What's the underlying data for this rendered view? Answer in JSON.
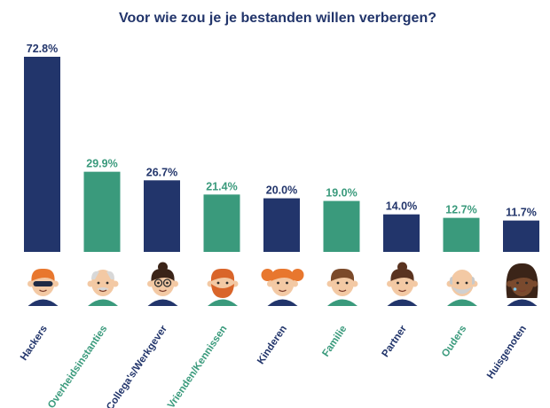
{
  "chart_data": {
    "type": "bar",
    "title": "Voor wie zou je je bestanden willen verbergen?",
    "xlabel": "",
    "ylabel": "",
    "ylim": [
      0,
      75
    ],
    "grid": false,
    "legend": "none",
    "value_suffix": "%",
    "categories": [
      "Hackers",
      "Overheidsinstanties",
      "Collega's/Werkgever",
      "Vrienden/Kennissen",
      "Kinderen",
      "Familie",
      "Partner",
      "Ouders",
      "Huisgenoten"
    ],
    "values": [
      72.8,
      29.9,
      26.7,
      21.4,
      20.0,
      19.0,
      14.0,
      12.7,
      11.7
    ],
    "value_labels": [
      "72.8%",
      "29.9%",
      "26.7%",
      "21.4%",
      "20.0%",
      "19.0%",
      "14.0%",
      "12.7%",
      "11.7%"
    ],
    "bar_colors": [
      "#22356b",
      "#3a9a7c",
      "#22356b",
      "#3a9a7c",
      "#22356b",
      "#3a9a7c",
      "#22356b",
      "#3a9a7c",
      "#22356b"
    ],
    "label_colors": [
      "#22356b",
      "#3a9a7c",
      "#22356b",
      "#3a9a7c",
      "#22356b",
      "#3a9a7c",
      "#22356b",
      "#3a9a7c",
      "#22356b"
    ],
    "icons": [
      "hacker-sunglasses-avatar",
      "older-man-mustache-avatar",
      "woman-glasses-bun-avatar",
      "man-red-beard-avatar",
      "girl-pigtails-avatar",
      "young-man-avatar",
      "woman-bun-avatar",
      "bald-man-beard-avatar",
      "woman-dark-hair-crying-avatar"
    ]
  },
  "colors": {
    "navy": "#22356b",
    "green": "#3a9a7c",
    "title": "#22356b"
  }
}
